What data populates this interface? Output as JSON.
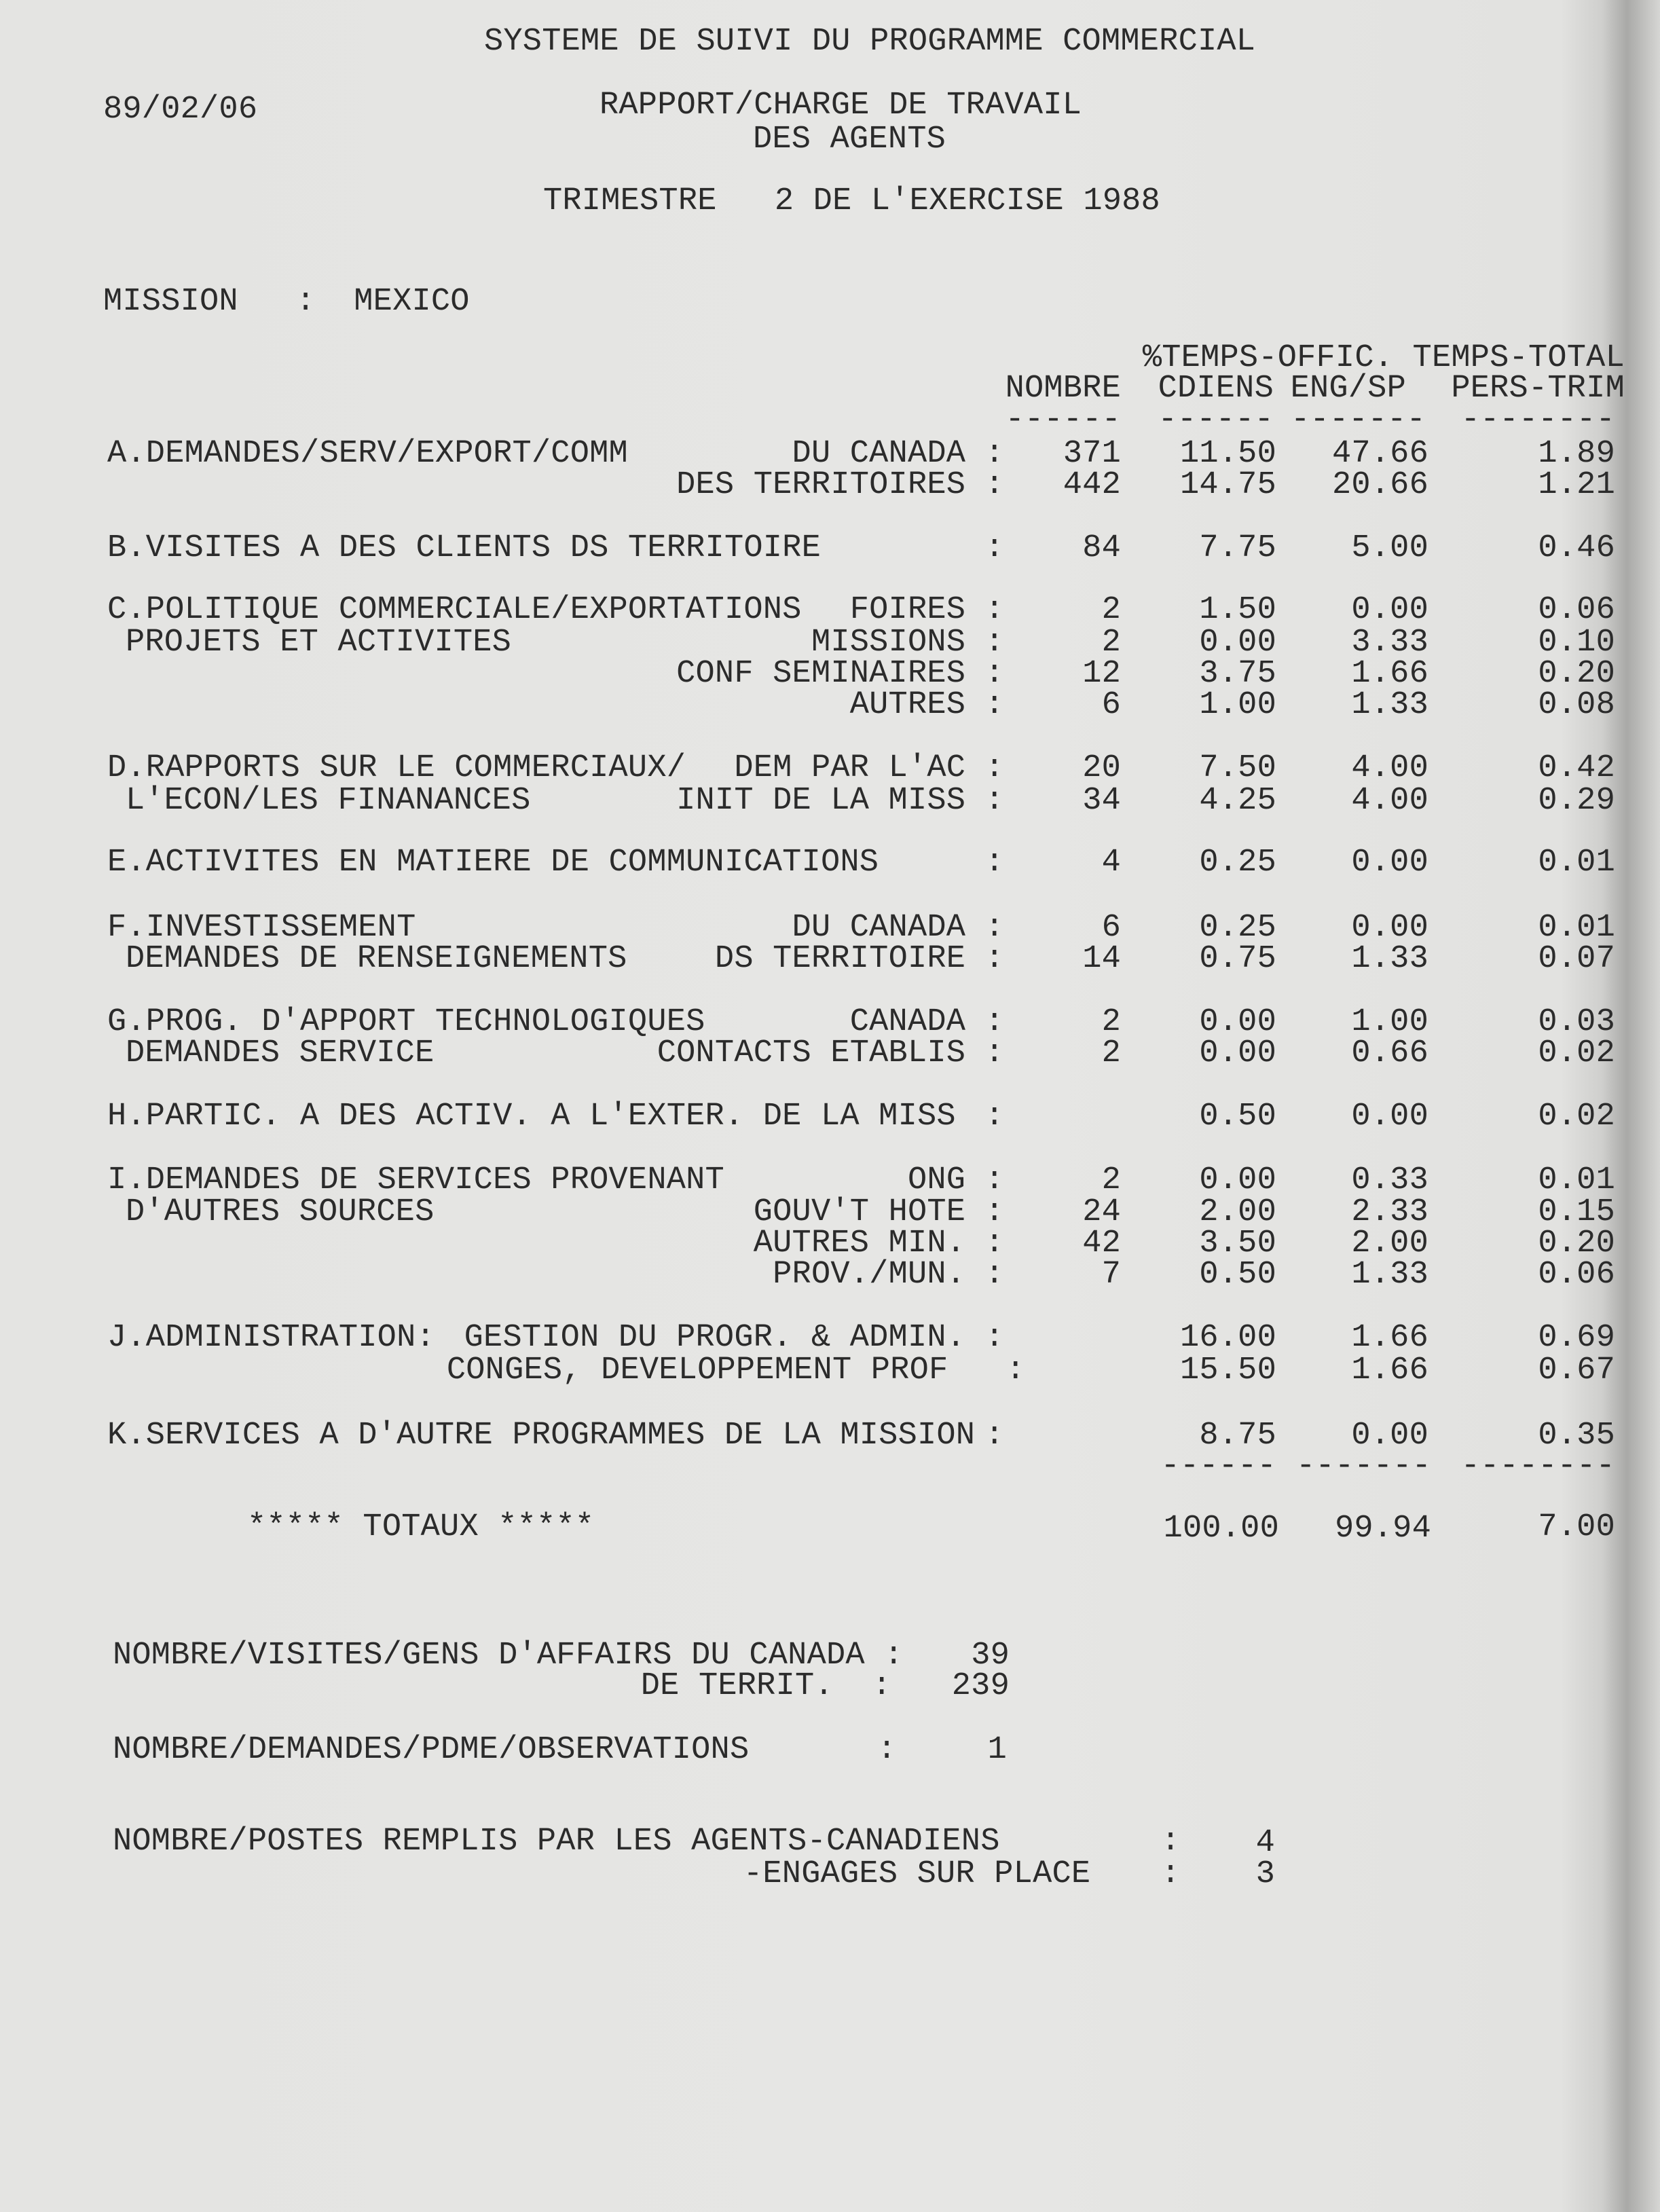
{
  "header": {
    "title": "SYSTEME DE SUIVI DU PROGRAMME COMMERCIAL",
    "date": "89/02/06",
    "report_line1": "RAPPORT/CHARGE DE TRAVAIL",
    "report_line2": "DES AGENTS",
    "period": "TRIMESTRE   2 DE L'EXERCISE 1988",
    "mission": "MISSION   :  MEXICO"
  },
  "columns": {
    "group_header": "%TEMPS-OFFIC. TEMPS-TOTAL",
    "nombre": "NOMBRE",
    "cdiens": "CDIENS",
    "engsp": "ENG/SP",
    "perstrim": "PERS-TRIM",
    "rule_nombre": "------",
    "rule_cdiens": "------",
    "rule_engsp": "-------",
    "rule_perstrim": "--------"
  },
  "rows": [
    {
      "label": "A.DEMANDES/SERV/EXPORT/COMM",
      "sub": "DU CANADA :",
      "nombre": "371",
      "cdiens": "11.50",
      "engsp": "47.66",
      "perstrim": "1.89"
    },
    {
      "label": "",
      "sub": "DES TERRITOIRES :",
      "nombre": "442",
      "cdiens": "14.75",
      "engsp": "20.66",
      "perstrim": "1.21"
    },
    {
      "label": "B.VISITES A DES CLIENTS DS TERRITOIRE",
      "sub": ":",
      "nombre": "84",
      "cdiens": "7.75",
      "engsp": "5.00",
      "perstrim": "0.46"
    },
    {
      "label": "C.POLITIQUE COMMERCIALE/EXPORTATIONS",
      "sub": "FOIRES :",
      "nombre": "2",
      "cdiens": "1.50",
      "engsp": "0.00",
      "perstrim": "0.06"
    },
    {
      "label": " PROJETS ET ACTIVITES",
      "sub": "MISSIONS :",
      "nombre": "2",
      "cdiens": "0.00",
      "engsp": "3.33",
      "perstrim": "0.10"
    },
    {
      "label": "",
      "sub": "CONF SEMINAIRES :",
      "nombre": "12",
      "cdiens": "3.75",
      "engsp": "1.66",
      "perstrim": "0.20"
    },
    {
      "label": "",
      "sub": "AUTRES :",
      "nombre": "6",
      "cdiens": "1.00",
      "engsp": "1.33",
      "perstrim": "0.08"
    },
    {
      "label": "D.RAPPORTS SUR LE COMMERCIAUX/",
      "sub": "DEM PAR L'AC :",
      "nombre": "20",
      "cdiens": "7.50",
      "engsp": "4.00",
      "perstrim": "0.42"
    },
    {
      "label": " L'ECON/LES FINANANCES",
      "sub": "INIT DE LA MISS :",
      "nombre": "34",
      "cdiens": "4.25",
      "engsp": "4.00",
      "perstrim": "0.29"
    },
    {
      "label": "E.ACTIVITES EN MATIERE DE COMMUNICATIONS",
      "sub": ":",
      "nombre": "4",
      "cdiens": "0.25",
      "engsp": "0.00",
      "perstrim": "0.01"
    },
    {
      "label": "F.INVESTISSEMENT",
      "sub": "DU CANADA :",
      "nombre": "6",
      "cdiens": "0.25",
      "engsp": "0.00",
      "perstrim": "0.01"
    },
    {
      "label": " DEMANDES DE RENSEIGNEMENTS",
      "sub": "DS TERRITOIRE :",
      "nombre": "14",
      "cdiens": "0.75",
      "engsp": "1.33",
      "perstrim": "0.07"
    },
    {
      "label": "G.PROG. D'APPORT TECHNOLOGIQUES",
      "sub": "CANADA :",
      "nombre": "2",
      "cdiens": "0.00",
      "engsp": "1.00",
      "perstrim": "0.03"
    },
    {
      "label": " DEMANDES SERVICE",
      "sub": "CONTACTS ETABLIS :",
      "nombre": "2",
      "cdiens": "0.00",
      "engsp": "0.66",
      "perstrim": "0.02"
    },
    {
      "label": "H.PARTIC. A DES ACTIV. A L'EXTER. DE LA MISS",
      "sub": ":",
      "nombre": "",
      "cdiens": "0.50",
      "engsp": "0.00",
      "perstrim": "0.02"
    },
    {
      "label": "I.DEMANDES DE SERVICES PROVENANT",
      "sub": "ONG :",
      "nombre": "2",
      "cdiens": "0.00",
      "engsp": "0.33",
      "perstrim": "0.01"
    },
    {
      "label": " D'AUTRES SOURCES",
      "sub": "GOUV'T HOTE :",
      "nombre": "24",
      "cdiens": "2.00",
      "engsp": "2.33",
      "perstrim": "0.15"
    },
    {
      "label": "",
      "sub": "AUTRES MIN. :",
      "nombre": "42",
      "cdiens": "3.50",
      "engsp": "2.00",
      "perstrim": "0.20"
    },
    {
      "label": "",
      "sub": "PROV./MUN. :",
      "nombre": "7",
      "cdiens": "0.50",
      "engsp": "1.33",
      "perstrim": "0.06"
    },
    {
      "label": "J.ADMINISTRATION:",
      "sub": "GESTION DU PROGR. & ADMIN. :",
      "nombre": "",
      "cdiens": "16.00",
      "engsp": "1.66",
      "perstrim": "0.69"
    },
    {
      "label": "",
      "sub": "CONGES, DEVELOPPEMENT PROF   :",
      "nombre": "",
      "cdiens": "15.50",
      "engsp": "1.66",
      "perstrim": "0.67"
    },
    {
      "label": "K.SERVICES A D'AUTRE PROGRAMMES DE LA MISSION",
      "sub": ":",
      "nombre": "",
      "cdiens": "8.75",
      "engsp": "0.00",
      "perstrim": "0.35"
    }
  ],
  "totals": {
    "rule_cdiens": "------",
    "rule_engsp": "-------",
    "rule_perstrim": "--------",
    "label": "***** TOTAUX *****",
    "cdiens": "100.00",
    "engsp": "99.94",
    "perstrim": "7.00"
  },
  "footer": {
    "visites_label": "NOMBRE/VISITES/GENS D'AFFAIRS DU CANADA :",
    "visites_canada": "39",
    "visites_territ_label": "DE TERRIT.  :",
    "visites_territ": "239",
    "demandes_label": "NOMBRE/DEMANDES/PDME/OBSERVATIONS",
    "demandes_colon": ":",
    "demandes_value": "1",
    "postes_label": "NOMBRE/POSTES REMPLIS PAR LES AGENTS-CANADIENS",
    "postes_colon": ":",
    "postes_canadiens": "4",
    "engages_label": "-ENGAGES SUR PLACE",
    "engages_colon": ":",
    "engages_value": "3"
  }
}
